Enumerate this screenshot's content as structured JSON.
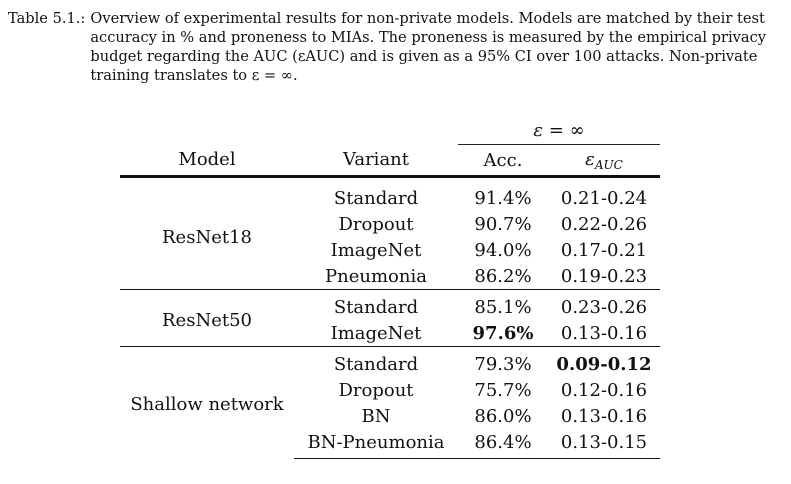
{
  "caption": {
    "label": "Table 5.1.:",
    "text": "Overview of experimental results for non-private models. Models are matched by their test accuracy in % and proneness to MIAs. The proneness is measured by the empirical privacy budget regarding the AUC (εAUC) and is given as a 95% CI over 100 attacks. Non-private training translates to ε = ∞."
  },
  "table": {
    "group_header": "ε = ∞",
    "headers": {
      "model": "Model",
      "variant": "Variant",
      "acc": "Acc.",
      "eps_symbol": "ε",
      "eps_sub": "AUC"
    },
    "groups": [
      {
        "model": "ResNet18",
        "rows": [
          {
            "variant": "Standard",
            "acc": "91.4%",
            "eps": "0.21-0.24"
          },
          {
            "variant": "Dropout",
            "acc": "90.7%",
            "eps": "0.22-0.26"
          },
          {
            "variant": "ImageNet",
            "acc": "94.0%",
            "eps": "0.17-0.21"
          },
          {
            "variant": "Pneumonia",
            "acc": "86.2%",
            "eps": "0.19-0.23"
          }
        ]
      },
      {
        "model": "ResNet50",
        "rows": [
          {
            "variant": "Standard",
            "acc": "85.1%",
            "eps": "0.23-0.26"
          },
          {
            "variant": "ImageNet",
            "acc": "97.6%",
            "eps": "0.13-0.16"
          }
        ]
      },
      {
        "model": "Shallow network",
        "rows": [
          {
            "variant": "Standard",
            "acc": "79.3%",
            "eps": "0.09-0.12"
          },
          {
            "variant": "Dropout",
            "acc": "75.7%",
            "eps": "0.12-0.16"
          },
          {
            "variant": "BN",
            "acc": "86.0%",
            "eps": "0.13-0.16"
          },
          {
            "variant": "BN-Pneumonia",
            "acc": "86.4%",
            "eps": "0.13-0.15"
          }
        ]
      }
    ]
  }
}
